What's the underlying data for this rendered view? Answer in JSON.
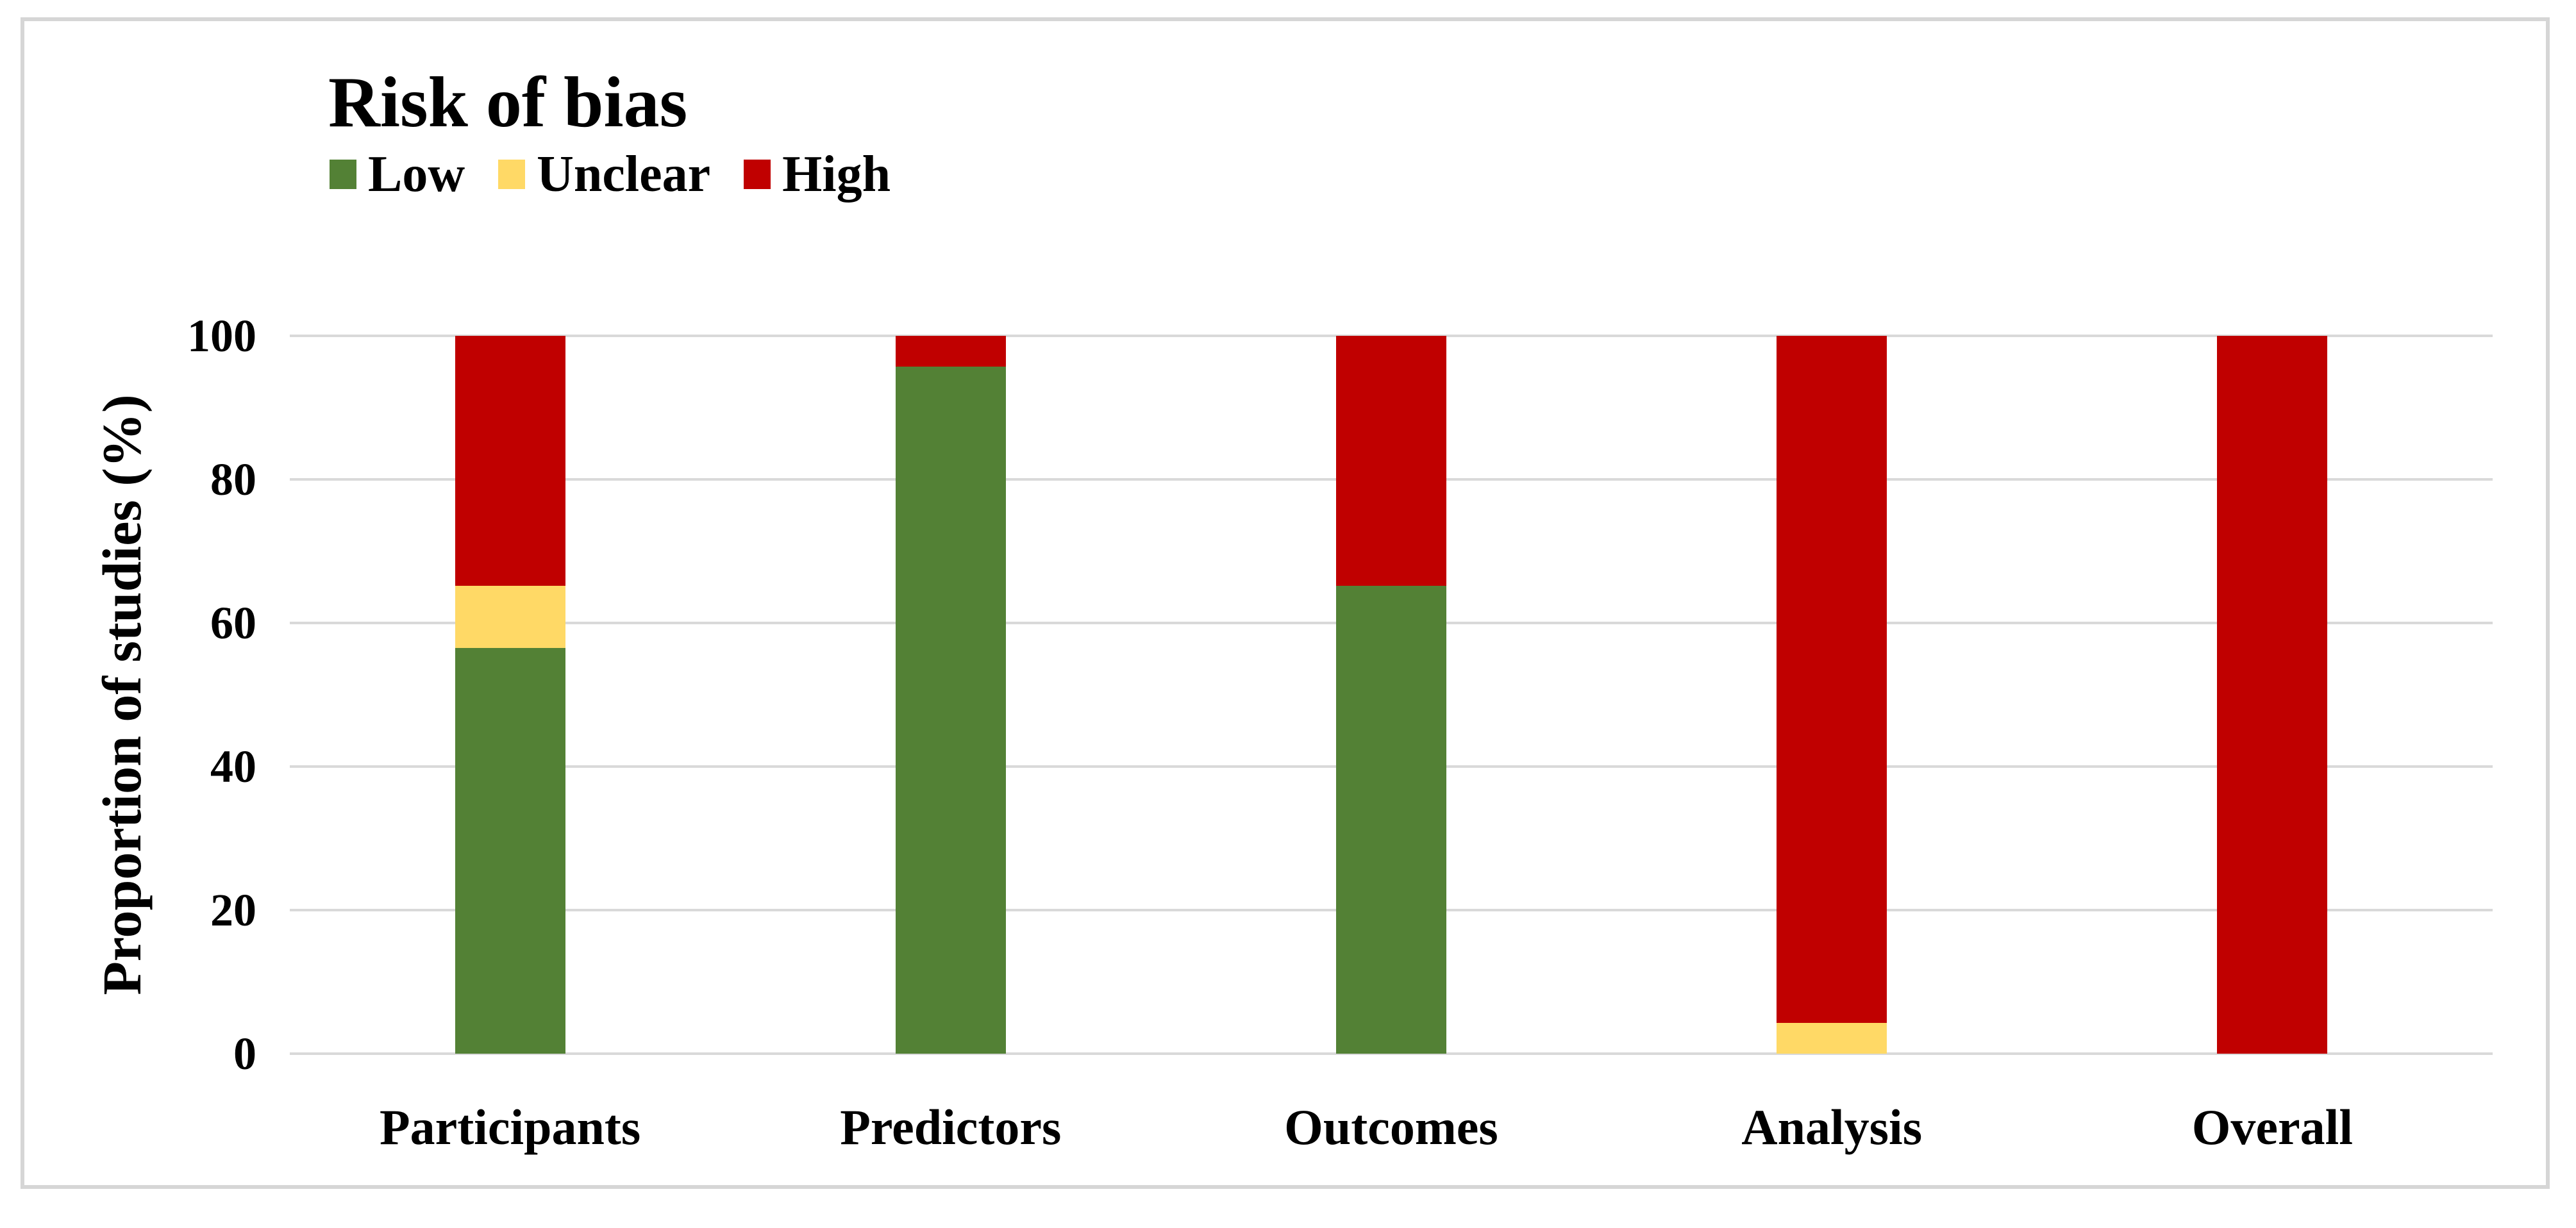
{
  "figure": {
    "background": "#ffffff",
    "border_color": "#d6d6d6"
  },
  "chart_data": {
    "type": "bar",
    "stacked": true,
    "title": "Risk of bias",
    "categories": [
      "Participants",
      "Predictors",
      "Outcomes",
      "Analysis",
      "Overall"
    ],
    "series": [
      {
        "name": "Low",
        "color": "#538135",
        "values": [
          56.5,
          95.7,
          65.2,
          0,
          0
        ]
      },
      {
        "name": "Unclear",
        "color": "#FFD966",
        "values": [
          8.7,
          0,
          0,
          4.3,
          0
        ]
      },
      {
        "name": "High",
        "color": "#C00000",
        "values": [
          34.8,
          4.3,
          34.8,
          95.7,
          100
        ]
      }
    ],
    "xlabel": "",
    "ylabel": "Proportion of studies (%)",
    "ylim": [
      0,
      100
    ],
    "yticks": [
      0,
      20,
      40,
      60,
      80,
      100
    ],
    "grid": "horizontal",
    "gridline_color": "#d9d9d9",
    "legend_position": "top-left"
  }
}
